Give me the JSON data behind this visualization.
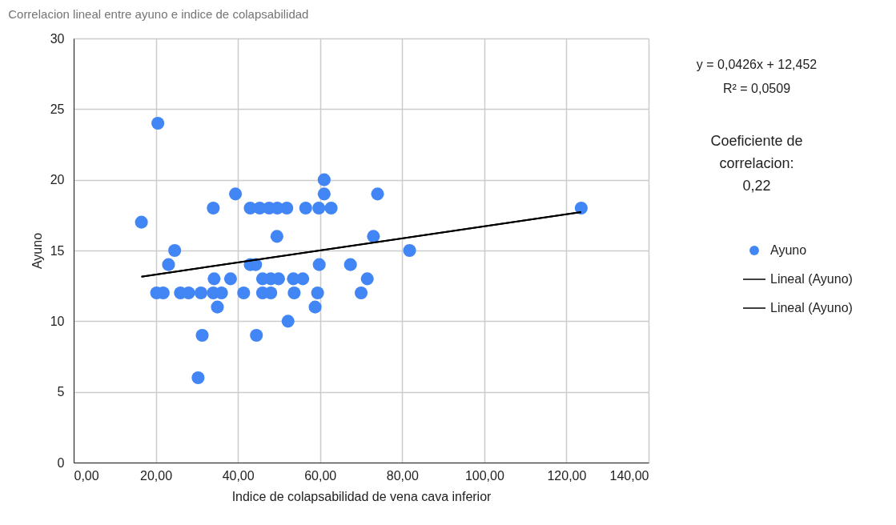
{
  "chart_data": {
    "type": "scatter",
    "title": "Correlacion lineal entre ayuno e indice de colapsabilidad",
    "xlabel": "Indice de colapsabilidad de vena cava inferior",
    "ylabel": "Ayuno",
    "xlim": [
      0,
      140
    ],
    "xticks": [
      {
        "value": 0,
        "label": "0,00"
      },
      {
        "value": 20,
        "label": "20,00"
      },
      {
        "value": 40,
        "label": "40,00"
      },
      {
        "value": 60,
        "label": "60,00"
      },
      {
        "value": 80,
        "label": "80,00"
      },
      {
        "value": 100,
        "label": "100,00"
      },
      {
        "value": 120,
        "label": "120,00"
      },
      {
        "value": 140,
        "label": "140,00"
      }
    ],
    "ylim": [
      0,
      30
    ],
    "yticks": [
      0,
      5,
      10,
      15,
      20,
      25,
      30
    ],
    "grid": true,
    "legend": "right",
    "series": [
      {
        "name": "Ayuno",
        "color": "#4285f4",
        "marker": "circle",
        "x": [
          20.5,
          16.5,
          24.6,
          23.1,
          20.2,
          21.8,
          26,
          28,
          31,
          34,
          36,
          34.2,
          38.2,
          35,
          31.3,
          30.3,
          34,
          39.4,
          41.4,
          44.5,
          43,
          44.3,
          43,
          49.5,
          46,
          48,
          49.9,
          53.5,
          55.8,
          71.5,
          46,
          48,
          53.7,
          59.4,
          70,
          45.3,
          47.6,
          49.6,
          51.9,
          56.5,
          59.7,
          62.7,
          61,
          61,
          74,
          73,
          59.8,
          67.4,
          58.8,
          52.2,
          81.8,
          123.6
        ],
        "values": [
          24,
          17,
          15,
          14,
          12,
          12,
          12,
          12,
          12,
          12,
          12,
          13,
          13,
          11,
          9,
          6,
          18,
          19,
          12,
          9,
          14,
          14,
          18,
          16,
          13,
          13,
          13,
          13,
          13,
          13,
          12,
          12,
          12,
          12,
          12,
          18,
          18,
          18,
          18,
          18,
          18,
          18,
          20,
          19,
          19,
          16,
          14,
          14,
          11,
          10,
          15,
          18
        ]
      },
      {
        "name": "Lineal (Ayuno)",
        "type": "line",
        "color": "#000000",
        "x": [
          16.5,
          123.6
        ],
        "values": [
          13.15,
          17.72
        ]
      },
      {
        "name": "Lineal (Ayuno)",
        "type": "line",
        "color": "#000000",
        "x": [
          16.5,
          123.6
        ],
        "values": [
          13.15,
          17.72
        ]
      }
    ],
    "annotations": [
      "y = 0,0426x + 12,452",
      "R² = 0,0509",
      "Coeficiente  de correlacion: 0,22"
    ]
  }
}
